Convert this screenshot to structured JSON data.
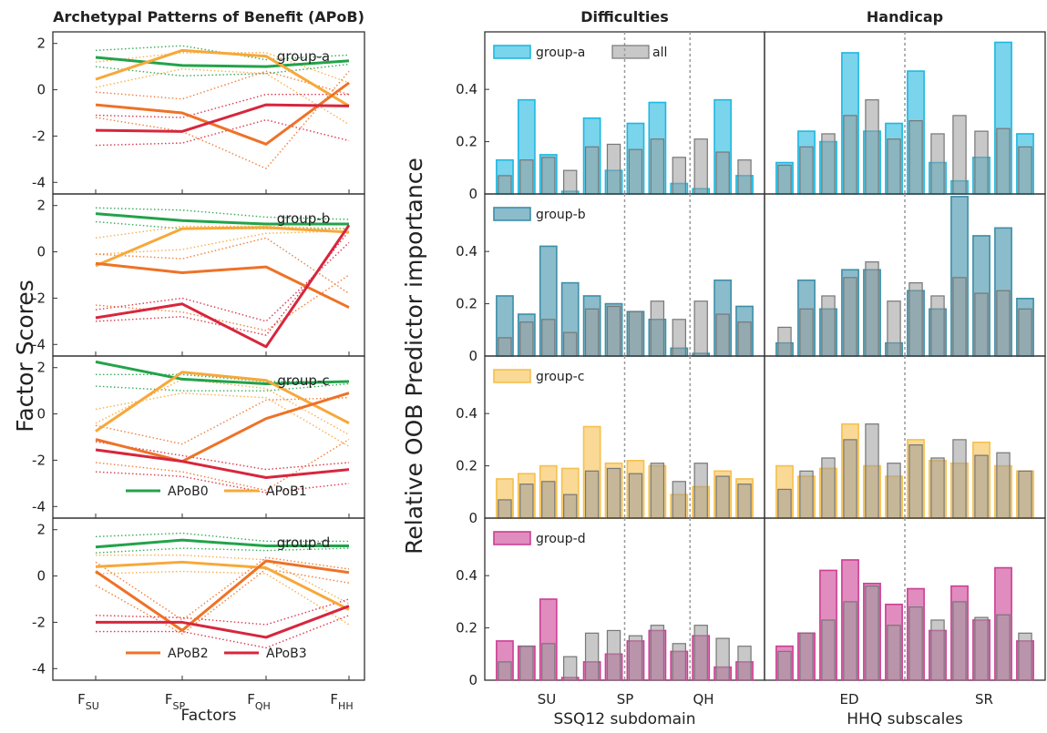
{
  "colors": {
    "APoB0": "#22a34a",
    "APoB1": "#f7a83a",
    "APoB2": "#ee7227",
    "APoB3": "#d7263d",
    "group-a": "#1fb8e0",
    "group-b": "#3d8fa8",
    "group-c": "#f5c04e",
    "group-d": "#cc3f94",
    "all": "#a6a6a6"
  },
  "chart_data": [
    {
      "type": "line",
      "title": "Archetypal Patterns of Benefit (APoB)",
      "ylabel": "Factor Scores",
      "xlabel": "Factors",
      "x_ticks": [
        {
          "main": "F",
          "sub": "SU"
        },
        {
          "main": "F",
          "sub": "SP"
        },
        {
          "main": "F",
          "sub": "QH"
        },
        {
          "main": "F",
          "sub": "HH"
        }
      ],
      "yticks": [
        2,
        0,
        -2,
        -4
      ],
      "ylim": [
        -4.5,
        2.5
      ],
      "legend": [
        {
          "panel": 2,
          "items": [
            "APoB0",
            "APoB1"
          ]
        },
        {
          "panel": 3,
          "items": [
            "APoB2",
            "APoB3"
          ]
        }
      ],
      "panels": [
        {
          "group": "group-a",
          "series": [
            {
              "name": "APoB0",
              "values": [
                1.4,
                1.05,
                1.0,
                1.25
              ]
            },
            {
              "name": "APoB1",
              "values": [
                0.45,
                1.7,
                1.45,
                -0.7
              ]
            },
            {
              "name": "APoB2",
              "values": [
                -0.65,
                -1.0,
                -2.35,
                0.3
              ]
            },
            {
              "name": "APoB3",
              "values": [
                -1.75,
                -1.8,
                -0.65,
                -0.7
              ]
            }
          ],
          "dotted": [
            {
              "color": "APoB0",
              "values": [
                1.7,
                1.9,
                1.3,
                1.5
              ]
            },
            {
              "color": "APoB0",
              "values": [
                1.0,
                0.6,
                0.7,
                1.1
              ]
            },
            {
              "color": "APoB1",
              "values": [
                1.2,
                1.6,
                1.6,
                0.3
              ]
            },
            {
              "color": "APoB1",
              "values": [
                0.1,
                0.9,
                0.7,
                -1.5
              ]
            },
            {
              "color": "APoB2",
              "values": [
                -0.1,
                -0.4,
                0.8,
                -0.2
              ]
            },
            {
              "color": "APoB2",
              "values": [
                -1.2,
                -1.8,
                -3.4,
                0.8
              ]
            },
            {
              "color": "APoB3",
              "values": [
                -1.1,
                -1.2,
                -0.2,
                -0.2
              ]
            },
            {
              "color": "APoB3",
              "values": [
                -2.4,
                -2.3,
                -1.3,
                -2.2
              ]
            }
          ]
        },
        {
          "group": "group-b",
          "series": [
            {
              "name": "APoB0",
              "values": [
                1.65,
                1.35,
                1.2,
                1.2
              ]
            },
            {
              "name": "APoB1",
              "values": [
                -0.6,
                1.0,
                1.05,
                0.85
              ]
            },
            {
              "name": "APoB2",
              "values": [
                -0.5,
                -0.9,
                -0.65,
                -2.4
              ]
            },
            {
              "name": "APoB3",
              "values": [
                -2.85,
                -2.25,
                -4.1,
                1.15
              ]
            }
          ],
          "dotted": [
            {
              "color": "APoB0",
              "values": [
                1.9,
                1.8,
                1.5,
                1.4
              ]
            },
            {
              "color": "APoB0",
              "values": [
                1.3,
                1.0,
                1.0,
                1.0
              ]
            },
            {
              "color": "APoB1",
              "values": [
                0.6,
                1.1,
                1.1,
                1.0
              ]
            },
            {
              "color": "APoB1",
              "values": [
                -0.1,
                0.1,
                0.8,
                0.9
              ]
            },
            {
              "color": "APoB2",
              "values": [
                -0.1,
                -0.3,
                0.6,
                -1.8
              ]
            },
            {
              "color": "APoB2",
              "values": [
                -2.3,
                -2.6,
                -3.4,
                -1.0
              ]
            },
            {
              "color": "APoB3",
              "values": [
                -2.5,
                -2.0,
                -3.0,
                0.4
              ]
            },
            {
              "color": "APoB3",
              "values": [
                -3.0,
                -2.8,
                -3.6,
                0.9
              ]
            }
          ]
        },
        {
          "group": "group-c",
          "series": [
            {
              "name": "APoB0",
              "values": [
                2.25,
                1.5,
                1.3,
                1.4
              ]
            },
            {
              "name": "APoB1",
              "values": [
                -0.75,
                1.8,
                1.45,
                -0.4
              ]
            },
            {
              "name": "APoB2",
              "values": [
                -1.1,
                -2.05,
                -0.2,
                0.9
              ]
            },
            {
              "name": "APoB3",
              "values": [
                -1.55,
                -2.05,
                -2.75,
                -2.4
              ]
            }
          ],
          "dotted": [
            {
              "color": "APoB0",
              "values": [
                1.7,
                1.7,
                1.4,
                1.4
              ]
            },
            {
              "color": "APoB0",
              "values": [
                1.2,
                1.0,
                1.0,
                1.3
              ]
            },
            {
              "color": "APoB1",
              "values": [
                0.2,
                0.9,
                0.7,
                -1.4
              ]
            },
            {
              "color": "APoB1",
              "values": [
                -0.4,
                1.5,
                1.1,
                -0.9
              ]
            },
            {
              "color": "APoB2",
              "values": [
                -0.5,
                -1.3,
                0.6,
                0.7
              ]
            },
            {
              "color": "APoB2",
              "values": [
                -2.1,
                -2.5,
                -3.3,
                -1.1
              ]
            },
            {
              "color": "APoB3",
              "values": [
                -1.2,
                -1.8,
                -2.4,
                -2.1
              ]
            },
            {
              "color": "APoB3",
              "values": [
                -2.5,
                -2.7,
                -3.4,
                -3.0
              ]
            }
          ]
        },
        {
          "group": "group-d",
          "series": [
            {
              "name": "APoB0",
              "values": [
                1.25,
                1.55,
                1.3,
                1.3
              ]
            },
            {
              "name": "APoB1",
              "values": [
                0.4,
                0.6,
                0.35,
                -1.45
              ]
            },
            {
              "name": "APoB2",
              "values": [
                0.2,
                -2.35,
                0.65,
                0.15
              ]
            },
            {
              "name": "APoB3",
              "values": [
                -2.0,
                -2.0,
                -2.65,
                -1.3
              ]
            }
          ],
          "dotted": [
            {
              "color": "APoB0",
              "values": [
                1.7,
                1.85,
                1.5,
                1.5
              ]
            },
            {
              "color": "APoB0",
              "values": [
                1.0,
                1.2,
                1.1,
                1.2
              ]
            },
            {
              "color": "APoB1",
              "values": [
                0.9,
                0.9,
                0.7,
                -1.2
              ]
            },
            {
              "color": "APoB1",
              "values": [
                0.1,
                0.2,
                0.1,
                -2.1
              ]
            },
            {
              "color": "APoB2",
              "values": [
                0.6,
                -1.9,
                0.8,
                0.3
              ]
            },
            {
              "color": "APoB2",
              "values": [
                -0.4,
                -2.5,
                0.3,
                -0.3
              ]
            },
            {
              "color": "APoB3",
              "values": [
                -1.7,
                -1.8,
                -2.1,
                -1.0
              ]
            },
            {
              "color": "APoB3",
              "values": [
                -2.4,
                -2.4,
                -3.1,
                -1.7
              ]
            }
          ]
        }
      ]
    },
    {
      "type": "bar",
      "ylabel": "Relative OOB Predictor importance",
      "column_titles": [
        "Difficulties",
        "Handicap"
      ],
      "yticks": [
        0,
        0.2,
        0.4
      ],
      "ylim": [
        0,
        0.62
      ],
      "legend_all": "all",
      "xlabels": [
        "SSQ12 subdomain",
        "HHQ subscales"
      ],
      "x_group_labels": [
        [
          "SU",
          "SP",
          "QH"
        ],
        [
          "ED",
          "SR"
        ]
      ],
      "divider_after": [
        [
          6,
          9
        ],
        [
          6
        ]
      ],
      "all": [
        [
          0.07,
          0.13,
          0.14,
          0.09,
          0.18,
          0.19,
          0.17,
          0.21,
          0.14,
          0.21,
          0.16,
          0.13
        ],
        [
          0.11,
          0.18,
          0.23,
          0.3,
          0.36,
          0.21,
          0.28,
          0.23,
          0.3,
          0.24,
          0.25,
          0.18
        ]
      ],
      "panels": [
        {
          "group": "group-a",
          "difficulties": [
            0.13,
            0.36,
            0.15,
            0.01,
            0.29,
            0.09,
            0.27,
            0.35,
            0.04,
            0.02,
            0.36,
            0.07
          ],
          "handicap": [
            0.12,
            0.24,
            0.2,
            0.54,
            0.24,
            0.27,
            0.47,
            0.12,
            0.05,
            0.14,
            0.58,
            0.23
          ]
        },
        {
          "group": "group-b",
          "difficulties": [
            0.23,
            0.16,
            0.42,
            0.28,
            0.23,
            0.2,
            0.17,
            0.14,
            0.03,
            0.01,
            0.29,
            0.19
          ],
          "handicap": [
            0.05,
            0.29,
            0.18,
            0.33,
            0.33,
            0.05,
            0.25,
            0.18,
            0.61,
            0.46,
            0.49,
            0.22
          ]
        },
        {
          "group": "group-c",
          "difficulties": [
            0.15,
            0.17,
            0.2,
            0.19,
            0.35,
            0.21,
            0.22,
            0.2,
            0.09,
            0.12,
            0.18,
            0.15
          ],
          "handicap": [
            0.2,
            0.16,
            0.19,
            0.36,
            0.2,
            0.16,
            0.3,
            0.22,
            0.21,
            0.29,
            0.2,
            0.18
          ]
        },
        {
          "group": "group-d",
          "difficulties": [
            0.15,
            0.13,
            0.31,
            0.01,
            0.07,
            0.1,
            0.15,
            0.19,
            0.11,
            0.17,
            0.05,
            0.07
          ],
          "handicap": [
            0.13,
            0.18,
            0.42,
            0.46,
            0.37,
            0.29,
            0.35,
            0.19,
            0.36,
            0.23,
            0.43,
            0.15
          ]
        }
      ]
    }
  ]
}
